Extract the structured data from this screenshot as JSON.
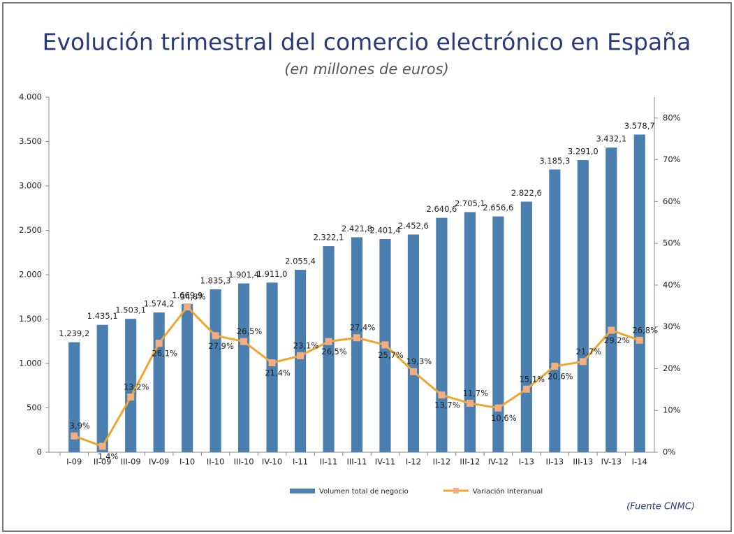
{
  "chart_data": {
    "type": "bar",
    "title": "Evolución trimestral del comercio electrónico en España",
    "subtitle": "(en millones de euros)",
    "source": "(Fuente CNMC)",
    "categories": [
      "I-09",
      "II-09",
      "III-09",
      "IV-09",
      "I-10",
      "II-10",
      "III-10",
      "IV-10",
      "I-11",
      "II-11",
      "III-11",
      "IV-11",
      "I-12",
      "II-12",
      "III-12",
      "IV-12",
      "I-13",
      "II-13",
      "III-13",
      "IV-13",
      "I-14"
    ],
    "series": [
      {
        "name": "Volumen total de negocio",
        "type": "bar",
        "color": "#4a7fb0",
        "values": [
          1239.2,
          1435.1,
          1503.1,
          1574.2,
          1669.9,
          1835.3,
          1901.4,
          1911.0,
          2055.4,
          2322.1,
          2421.8,
          2401.4,
          2452.6,
          2640.6,
          2705.1,
          2656.6,
          2822.6,
          3185.3,
          3291.0,
          3432.1,
          3578.7
        ],
        "value_labels": [
          "1.239,2",
          "1.435,1",
          "1.503,1",
          "1.574,2",
          "1.669,9",
          "1.835,3",
          "1.901,4",
          "1.911,0",
          "2.055,4",
          "2.322,1",
          "2.421,8",
          "2.401,4",
          "2.452,6",
          "2.640,6",
          "2.705,1",
          "2.656,6",
          "2.822,6",
          "3.185,3",
          "3.291,0",
          "3.432,1",
          "3.578,7"
        ]
      },
      {
        "name": "Variación Interanual",
        "type": "line",
        "axis": "y2",
        "color": "#eea630",
        "marker_color": "#f2ad80",
        "values": [
          3.9,
          1.4,
          13.2,
          26.1,
          34.8,
          27.9,
          26.5,
          21.4,
          23.1,
          26.5,
          27.4,
          25.7,
          19.3,
          13.7,
          11.7,
          10.6,
          15.1,
          20.6,
          21.7,
          29.2,
          26.8
        ],
        "value_labels": [
          "3,9%",
          "1,4%",
          "13,2%",
          "26,1%",
          "34,8%",
          "27,9%",
          "26,5%",
          "21,4%",
          "23,1%",
          "26,5%",
          "27,4%",
          "25,7%",
          "19,3%",
          "13,7%",
          "11,7%",
          "10,6%",
          "15,1%",
          "20,6%",
          "21,7%",
          "29,2%",
          "26,8%"
        ]
      }
    ],
    "ylim": [
      0,
      4000
    ],
    "yticks": [
      0,
      500,
      {
        "value": 1000,
        "label": "1.000"
      },
      {
        "value": 1500,
        "label": "1.500"
      },
      {
        "value": 2000,
        "label": "2.000"
      },
      {
        "value": 2500,
        "label": "2.500"
      },
      {
        "value": 3000,
        "label": "3.000"
      },
      {
        "value": 3500,
        "label": "3.500"
      },
      {
        "value": 4000,
        "label": "4.000"
      }
    ],
    "y2lim": [
      0,
      85
    ],
    "y2ticks": [
      {
        "value": 0,
        "label": "0%"
      },
      {
        "value": 10,
        "label": "10%"
      },
      {
        "value": 20,
        "label": "20%"
      },
      {
        "value": 30,
        "label": "30%"
      },
      {
        "value": 40,
        "label": "40%"
      },
      {
        "value": 50,
        "label": "50%"
      },
      {
        "value": 60,
        "label": "60%"
      },
      {
        "value": 70,
        "label": "70%"
      },
      {
        "value": 80,
        "label": "80%"
      }
    ],
    "legend": "bottom"
  }
}
